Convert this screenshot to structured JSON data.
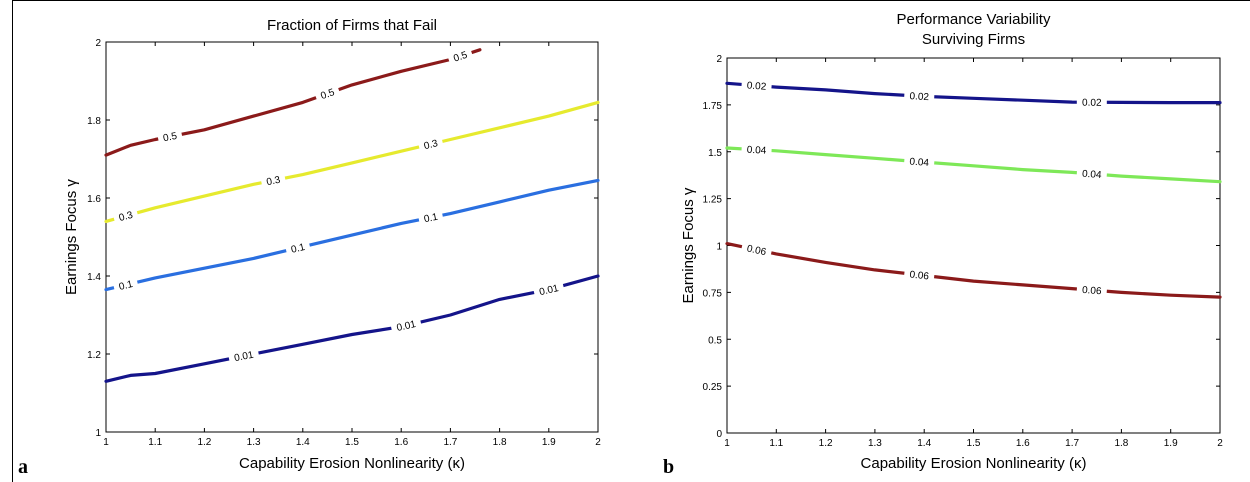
{
  "panel_letters": [
    "a",
    "b"
  ],
  "chart_data": [
    {
      "type": "line",
      "title": "Fraction of Firms that Fail",
      "xlabel": "Capability Erosion Nonlinearity (κ)",
      "ylabel": "Earnings Focus γ",
      "xlim": [
        1,
        2
      ],
      "ylim": [
        1,
        2
      ],
      "xticks": [
        "1",
        "1.1",
        "1.2",
        "1.3",
        "1.4",
        "1.5",
        "1.6",
        "1.7",
        "1.8",
        "1.9",
        "2"
      ],
      "yticks": [
        "1",
        "1.2",
        "1.4",
        "1.6",
        "1.8",
        "2"
      ],
      "grid": false,
      "series": [
        {
          "name": "0.5",
          "color": "#8b1a1a",
          "x": [
            1.0,
            1.05,
            1.1,
            1.2,
            1.3,
            1.4,
            1.5,
            1.6,
            1.7,
            1.76
          ],
          "y": [
            1.71,
            1.735,
            1.75,
            1.775,
            1.81,
            1.845,
            1.89,
            1.925,
            1.955,
            1.98
          ],
          "labels": [
            1.13,
            1.45,
            1.72
          ]
        },
        {
          "name": "0.3",
          "color": "#e6ea2e",
          "x": [
            1.0,
            1.1,
            1.2,
            1.3,
            1.4,
            1.5,
            1.6,
            1.7,
            1.8,
            1.9,
            2.0
          ],
          "y": [
            1.54,
            1.575,
            1.605,
            1.635,
            1.66,
            1.69,
            1.72,
            1.75,
            1.78,
            1.81,
            1.845
          ],
          "labels": [
            1.04,
            1.34,
            1.66
          ]
        },
        {
          "name": "0.1",
          "color": "#2a6fe0",
          "x": [
            1.0,
            1.1,
            1.2,
            1.3,
            1.4,
            1.5,
            1.6,
            1.7,
            1.8,
            1.9,
            2.0
          ],
          "y": [
            1.365,
            1.395,
            1.42,
            1.445,
            1.475,
            1.505,
            1.535,
            1.56,
            1.59,
            1.62,
            1.645
          ],
          "labels": [
            1.04,
            1.39,
            1.66
          ]
        },
        {
          "name": "0.01",
          "color": "#14148a",
          "x": [
            1.0,
            1.05,
            1.1,
            1.2,
            1.3,
            1.4,
            1.5,
            1.6,
            1.7,
            1.8,
            1.9,
            2.0
          ],
          "y": [
            1.13,
            1.145,
            1.15,
            1.175,
            1.2,
            1.225,
            1.25,
            1.27,
            1.3,
            1.34,
            1.365,
            1.4
          ],
          "labels": [
            1.28,
            1.61,
            1.9
          ]
        }
      ]
    },
    {
      "type": "line",
      "title": "Performance Variability\nSurviving Firms",
      "xlabel": "Capability Erosion Nonlinearity (κ)",
      "ylabel": "Earnings Focus γ",
      "xlim": [
        1,
        2
      ],
      "ylim": [
        0,
        2
      ],
      "xticks": [
        "1",
        "1.1",
        "1.2",
        "1.3",
        "1.4",
        "1.5",
        "1.6",
        "1.7",
        "1.8",
        "1.9",
        "2"
      ],
      "yticks": [
        "0",
        "0.25",
        "0.5",
        "0.75",
        "1",
        "1.25",
        "1.5",
        "1.75",
        "2"
      ],
      "grid": false,
      "series": [
        {
          "name": "0.02",
          "color": "#14148a",
          "x": [
            1.0,
            1.1,
            1.2,
            1.3,
            1.4,
            1.5,
            1.6,
            1.7,
            1.8,
            1.9,
            2.0
          ],
          "y": [
            1.865,
            1.845,
            1.83,
            1.81,
            1.795,
            1.785,
            1.775,
            1.765,
            1.763,
            1.762,
            1.762
          ],
          "labels": [
            1.06,
            1.39,
            1.74
          ]
        },
        {
          "name": "0.04",
          "color": "#7ee858",
          "x": [
            1.0,
            1.1,
            1.2,
            1.3,
            1.4,
            1.5,
            1.6,
            1.7,
            1.8,
            1.9,
            2.0
          ],
          "y": [
            1.52,
            1.505,
            1.485,
            1.465,
            1.445,
            1.425,
            1.405,
            1.39,
            1.37,
            1.355,
            1.34
          ],
          "labels": [
            1.06,
            1.39,
            1.74
          ]
        },
        {
          "name": "0.06",
          "color": "#8b1a1a",
          "x": [
            1.0,
            1.1,
            1.2,
            1.3,
            1.4,
            1.5,
            1.6,
            1.7,
            1.8,
            1.9,
            2.0
          ],
          "y": [
            1.01,
            0.955,
            0.91,
            0.87,
            0.84,
            0.81,
            0.79,
            0.77,
            0.75,
            0.735,
            0.725
          ],
          "labels": [
            1.06,
            1.39,
            1.74
          ]
        }
      ]
    }
  ]
}
